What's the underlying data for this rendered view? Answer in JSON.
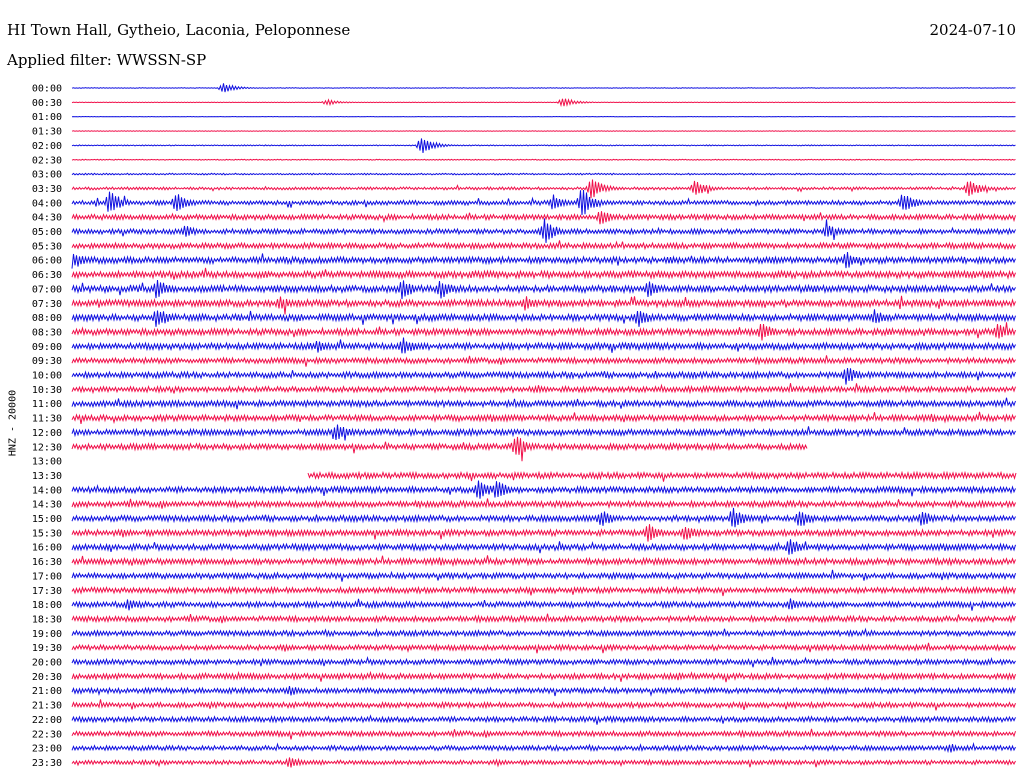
{
  "header": {
    "station": "HI Town Hall, Gytheio, Laconia, Peloponnese",
    "date": "2024-07-10",
    "filter": "Applied filter: WWSSN-SP"
  },
  "colors": {
    "blue": "#1010e0",
    "red": "#f0104a"
  },
  "chart_data": {
    "type": "line",
    "title": "HI Town Hall, Gytheio, Laconia, Peloponnese",
    "subtitle": "Applied filter: WWSSN-SP",
    "ylabel": "HNZ - 20000",
    "xlabel": "",
    "row_labels": [
      "00:00",
      "00:30",
      "01:00",
      "01:30",
      "02:00",
      "02:30",
      "03:00",
      "03:30",
      "04:00",
      "04:30",
      "05:00",
      "05:30",
      "06:00",
      "06:30",
      "07:00",
      "07:30",
      "08:00",
      "08:30",
      "09:00",
      "09:30",
      "10:00",
      "10:30",
      "11:00",
      "11:30",
      "12:00",
      "12:30",
      "13:00",
      "13:30",
      "14:00",
      "14:30",
      "15:00",
      "15:30",
      "16:00",
      "16:30",
      "17:00",
      "17:30",
      "18:00",
      "18:30",
      "19:00",
      "19:30",
      "20:00",
      "20:30",
      "21:00",
      "21:30",
      "22:00",
      "22:30",
      "23:00",
      "23:30"
    ],
    "series_colors": [
      "blue",
      "red"
    ],
    "row_noise_amplitude": [
      0.3,
      0.3,
      0.2,
      0.3,
      0.5,
      0.5,
      0.8,
      1.4,
      2.2,
      2.6,
      2.5,
      2.8,
      3.2,
      3.4,
      3.4,
      3.4,
      3.4,
      3.2,
      3.2,
      2.8,
      3.0,
      2.8,
      3.0,
      3.0,
      3.0,
      3.0,
      0,
      3.0,
      3.0,
      3.0,
      3.0,
      3.0,
      3.0,
      3.0,
      2.8,
      2.8,
      2.8,
      2.8,
      2.6,
      2.6,
      2.6,
      2.8,
      2.6,
      2.6,
      2.6,
      2.6,
      2.4,
      2.2
    ],
    "data_coverage": [
      {
        "row": "12:30",
        "x_end_fraction": 0.78
      },
      {
        "row": "13:00",
        "x_start_fraction": 1.0
      },
      {
        "row": "13:30",
        "x_start_fraction": 0.25
      }
    ],
    "events": [
      {
        "row": "00:00",
        "x": 0.16,
        "amp": 5
      },
      {
        "row": "00:30",
        "x": 0.52,
        "amp": 5
      },
      {
        "row": "00:30",
        "x": 0.27,
        "amp": 3
      },
      {
        "row": "02:00",
        "x": 0.37,
        "amp": 9
      },
      {
        "row": "03:30",
        "x": 0.55,
        "amp": 12
      },
      {
        "row": "03:30",
        "x": 0.66,
        "amp": 9
      },
      {
        "row": "03:30",
        "x": 0.95,
        "amp": 10
      },
      {
        "row": "04:00",
        "x": 0.04,
        "amp": 13
      },
      {
        "row": "04:00",
        "x": 0.11,
        "amp": 11
      },
      {
        "row": "04:00",
        "x": 0.54,
        "amp": 16
      },
      {
        "row": "04:00",
        "x": 0.51,
        "amp": 9
      },
      {
        "row": "04:00",
        "x": 0.88,
        "amp": 11
      },
      {
        "row": "04:30",
        "x": 0.56,
        "amp": 9
      },
      {
        "row": "05:00",
        "x": 0.5,
        "amp": 14
      },
      {
        "row": "05:00",
        "x": 0.12,
        "amp": 7
      },
      {
        "row": "05:00",
        "x": 0.8,
        "amp": 8
      },
      {
        "row": "06:00",
        "x": 0.0,
        "amp": 11
      },
      {
        "row": "06:00",
        "x": 0.82,
        "amp": 10
      },
      {
        "row": "07:00",
        "x": 0.09,
        "amp": 11
      },
      {
        "row": "07:00",
        "x": 0.35,
        "amp": 11
      },
      {
        "row": "07:00",
        "x": 0.39,
        "amp": 11
      },
      {
        "row": "07:00",
        "x": 0.61,
        "amp": 9
      },
      {
        "row": "07:30",
        "x": 0.22,
        "amp": 8
      },
      {
        "row": "07:30",
        "x": 0.48,
        "amp": 8
      },
      {
        "row": "08:00",
        "x": 0.09,
        "amp": 12
      },
      {
        "row": "08:00",
        "x": 0.6,
        "amp": 10
      },
      {
        "row": "08:00",
        "x": 0.85,
        "amp": 9
      },
      {
        "row": "08:30",
        "x": 0.73,
        "amp": 11
      },
      {
        "row": "08:30",
        "x": 0.98,
        "amp": 10
      },
      {
        "row": "09:00",
        "x": 0.35,
        "amp": 11
      },
      {
        "row": "09:00",
        "x": 0.26,
        "amp": 7
      },
      {
        "row": "10:00",
        "x": 0.82,
        "amp": 10
      },
      {
        "row": "12:00",
        "x": 0.28,
        "amp": 10
      },
      {
        "row": "12:30",
        "x": 0.47,
        "amp": 13
      },
      {
        "row": "14:00",
        "x": 0.43,
        "amp": 12
      },
      {
        "row": "14:00",
        "x": 0.45,
        "amp": 12
      },
      {
        "row": "15:00",
        "x": 0.56,
        "amp": 10
      },
      {
        "row": "15:00",
        "x": 0.7,
        "amp": 12
      },
      {
        "row": "15:00",
        "x": 0.77,
        "amp": 11
      },
      {
        "row": "15:00",
        "x": 0.9,
        "amp": 9
      },
      {
        "row": "15:30",
        "x": 0.61,
        "amp": 11
      },
      {
        "row": "15:30",
        "x": 0.65,
        "amp": 9
      },
      {
        "row": "16:00",
        "x": 0.76,
        "amp": 10
      },
      {
        "row": "18:00",
        "x": 0.06,
        "amp": 7
      },
      {
        "row": "18:00",
        "x": 0.76,
        "amp": 7
      },
      {
        "row": "21:00",
        "x": 0.23,
        "amp": 6
      },
      {
        "row": "23:00",
        "x": 0.93,
        "amp": 5
      },
      {
        "row": "23:30",
        "x": 0.23,
        "amp": 7
      }
    ]
  }
}
